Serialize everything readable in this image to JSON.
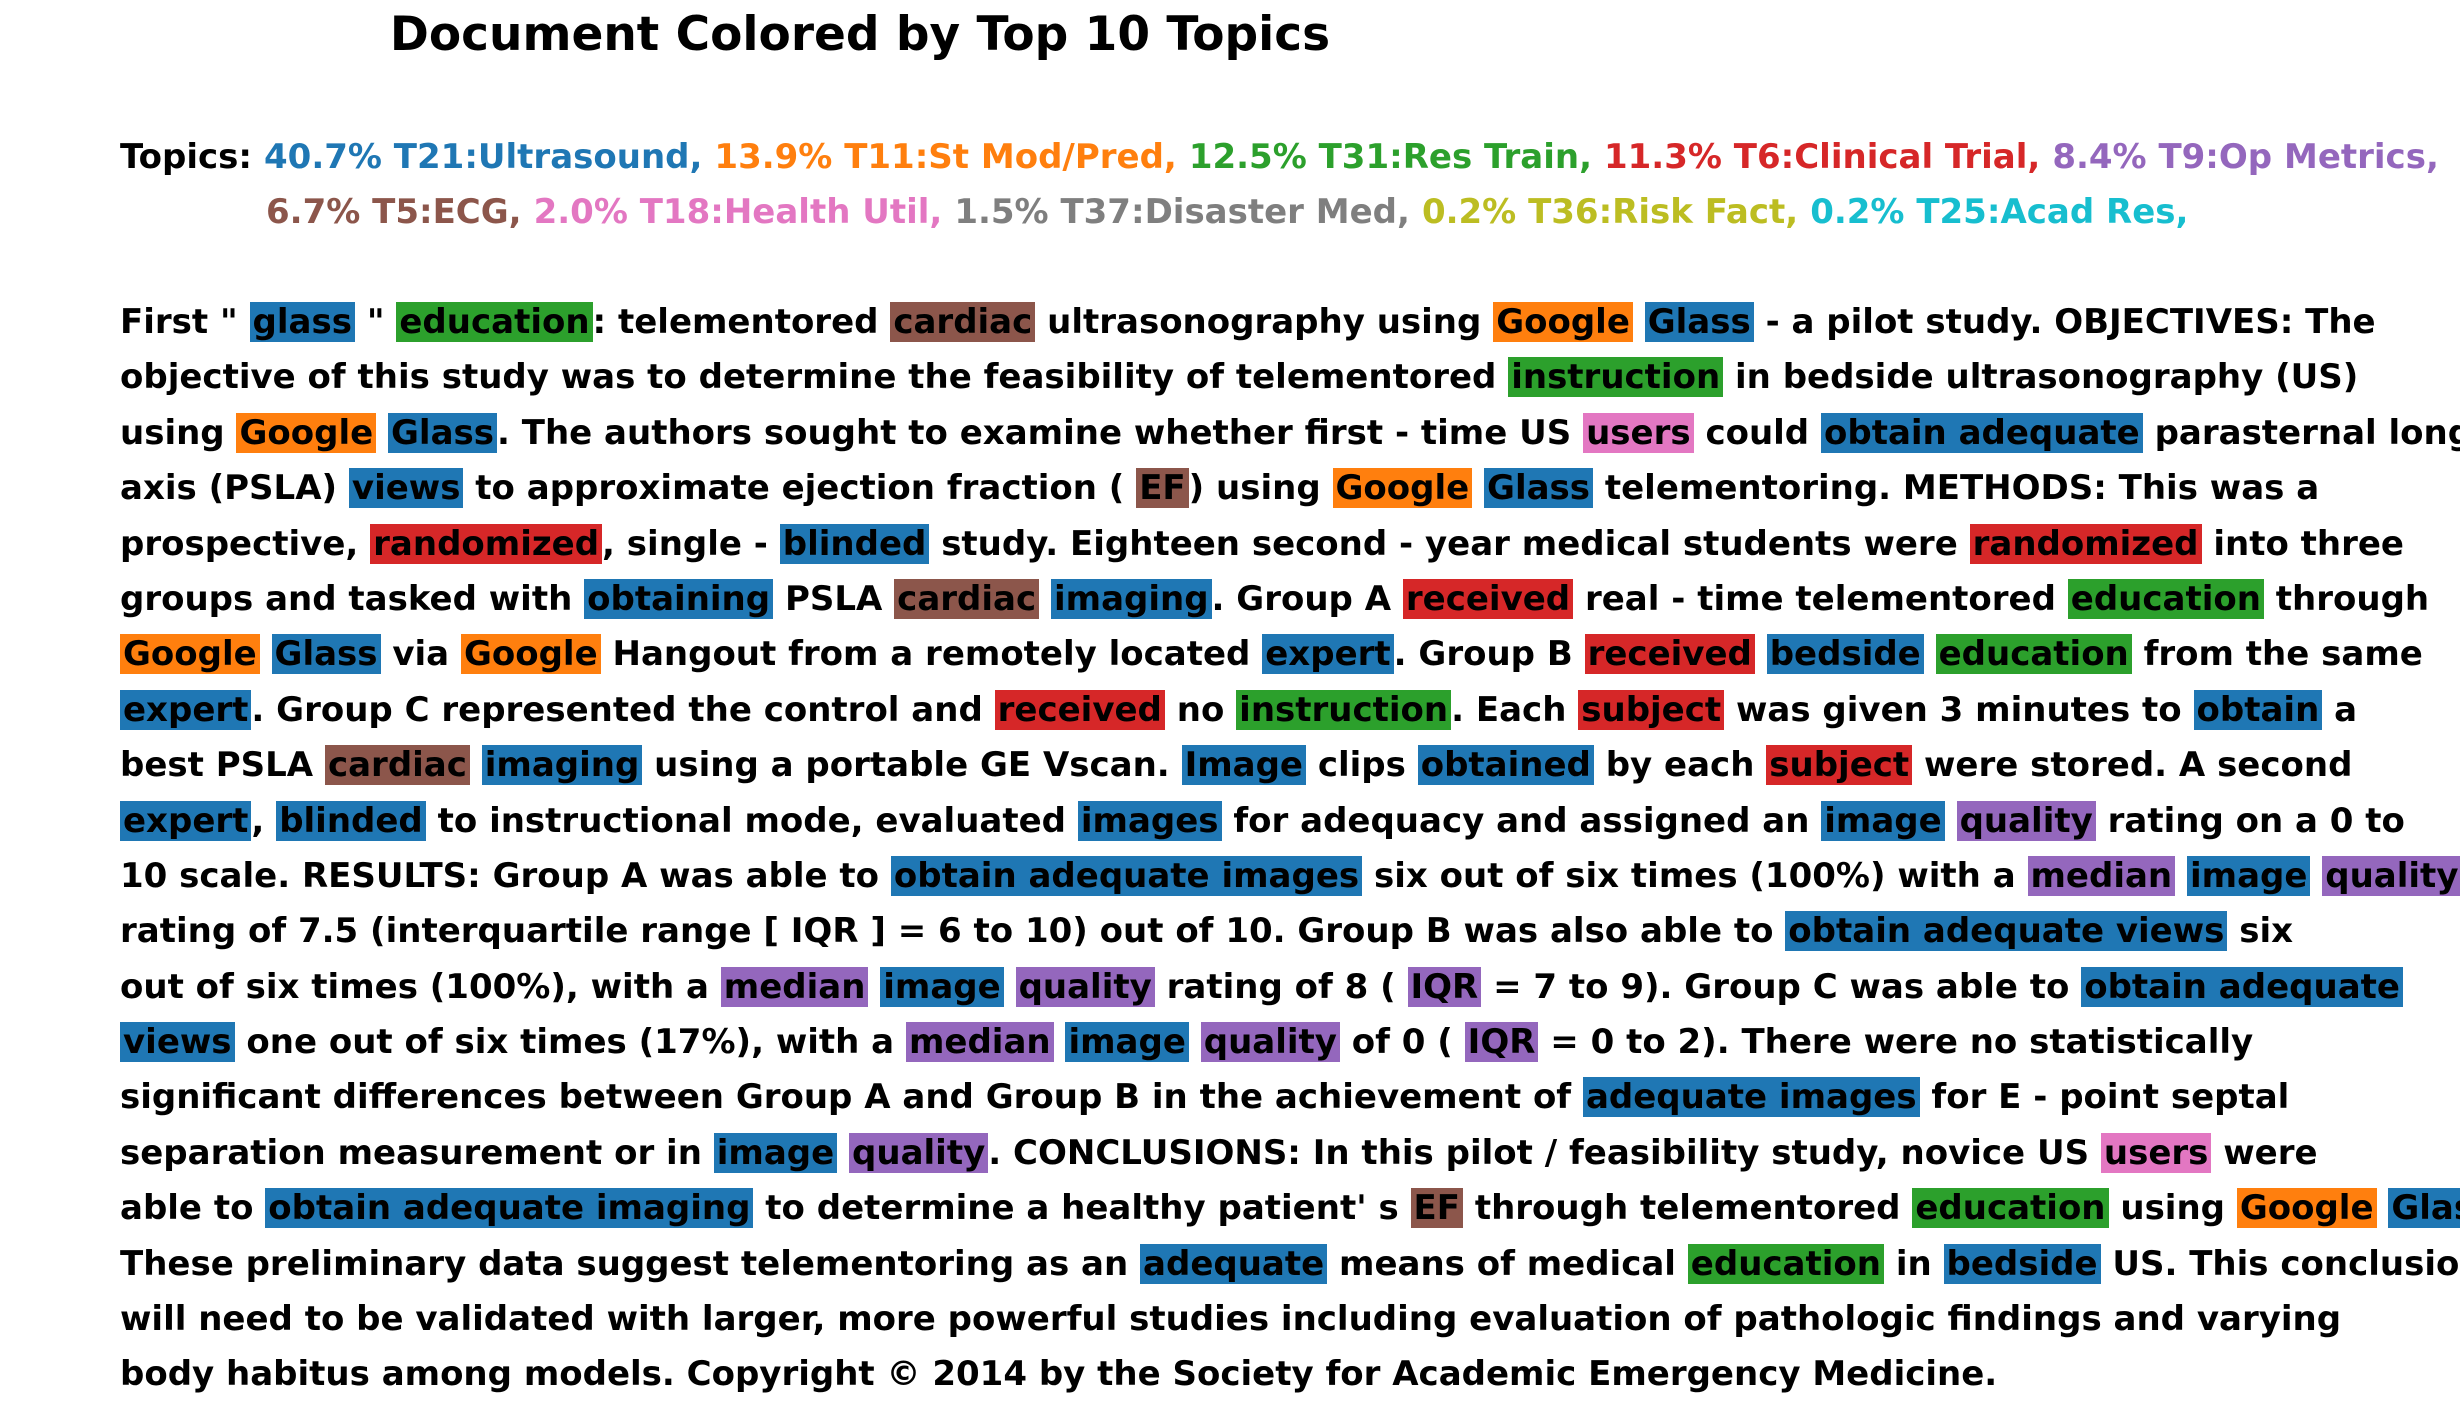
{
  "title": "Document Colored by Top 10 Topics",
  "legend": {
    "label": "Topics:",
    "row1": [
      {
        "text": "40.7% T21:Ultrasound,",
        "color": "#1f77b4"
      },
      {
        "text": "13.9% T11:St Mod/Pred,",
        "color": "#ff7f0e"
      },
      {
        "text": "12.5% T31:Res Train,",
        "color": "#2ca02c"
      },
      {
        "text": "11.3% T6:Clinical Trial,",
        "color": "#d62728"
      },
      {
        "text": "8.4% T9:Op Metrics,",
        "color": "#9467bd"
      }
    ],
    "row2": [
      {
        "text": "6.7% T5:ECG,",
        "color": "#8c564b"
      },
      {
        "text": "2.0% T18:Health Util,",
        "color": "#e377c2"
      },
      {
        "text": "1.5% T37:Disaster Med,",
        "color": "#7f7f7f"
      },
      {
        "text": "0.2% T36:Risk Fact,",
        "color": "#bcbd22"
      },
      {
        "text": "0.2% T25:Acad Res,",
        "color": "#17becf"
      }
    ]
  },
  "topic_colors": {
    "T21": "#1f77b4",
    "T11": "#ff7f0e",
    "T31": "#2ca02c",
    "T6": "#d62728",
    "T9": "#9467bd",
    "T5": "#8c564b",
    "T18": "#e377c2",
    "T37": "#7f7f7f",
    "T36": "#bcbd22",
    "T25": "#17becf"
  },
  "lines": [
    [
      [
        "First \"",
        null
      ],
      [
        "glass",
        "T21"
      ],
      [
        "\"",
        null
      ],
      [
        "education",
        "T31"
      ],
      [
        ": telementored",
        null
      ],
      [
        "cardiac",
        "T5"
      ],
      [
        "ultrasonography using",
        null
      ],
      [
        "Google",
        "T11"
      ],
      [
        "Glass",
        "T21"
      ],
      [
        "- a pilot study. OBJECTIVES: The",
        null
      ]
    ],
    [
      [
        "objective of this study was to determine the feasibility of telementored",
        null
      ],
      [
        "instruction",
        "T31"
      ],
      [
        "in bedside ultrasonography (US)",
        null
      ]
    ],
    [
      [
        "using",
        null
      ],
      [
        "Google",
        "T11"
      ],
      [
        "Glass",
        "T21"
      ],
      [
        ". The authors sought to examine whether first - time US",
        null
      ],
      [
        "users",
        "T18"
      ],
      [
        "could",
        null
      ],
      [
        "obtain adequate",
        "T21"
      ],
      [
        "parasternal long",
        null
      ]
    ],
    [
      [
        "axis (PSLA)",
        null
      ],
      [
        "views",
        "T21"
      ],
      [
        "to approximate ejection fraction (",
        null
      ],
      [
        "EF",
        "T5"
      ],
      [
        ") using",
        null
      ],
      [
        "Google",
        "T11"
      ],
      [
        "Glass",
        "T21"
      ],
      [
        "telementoring. METHODS: This was a",
        null
      ]
    ],
    [
      [
        "prospective,",
        null
      ],
      [
        "randomized",
        "T6"
      ],
      [
        ", single -",
        null
      ],
      [
        "blinded",
        "T21"
      ],
      [
        "study. Eighteen second - year medical students were",
        null
      ],
      [
        "randomized",
        "T6"
      ],
      [
        "into three",
        null
      ]
    ],
    [
      [
        "groups and tasked with",
        null
      ],
      [
        "obtaining",
        "T21"
      ],
      [
        "PSLA",
        null
      ],
      [
        "cardiac",
        "T5"
      ],
      [
        "imaging",
        "T21"
      ],
      [
        ". Group A",
        null
      ],
      [
        "received",
        "T6"
      ],
      [
        "real - time telementored",
        null
      ],
      [
        "education",
        "T31"
      ],
      [
        "through",
        null
      ]
    ],
    [
      [
        "Google",
        "T11"
      ],
      [
        "Glass",
        "T21"
      ],
      [
        "via",
        null
      ],
      [
        "Google",
        "T11"
      ],
      [
        "Hangout from a remotely located",
        null
      ],
      [
        "expert",
        "T21"
      ],
      [
        ". Group B",
        null
      ],
      [
        "received",
        "T6"
      ],
      [
        "bedside",
        "T21"
      ],
      [
        "education",
        "T31"
      ],
      [
        "from the same",
        null
      ]
    ],
    [
      [
        "expert",
        "T21"
      ],
      [
        ". Group C represented the control and",
        null
      ],
      [
        "received",
        "T6"
      ],
      [
        "no",
        null
      ],
      [
        "instruction",
        "T31"
      ],
      [
        ". Each",
        null
      ],
      [
        "subject",
        "T6"
      ],
      [
        "was given 3 minutes to",
        null
      ],
      [
        "obtain",
        "T21"
      ],
      [
        "a",
        null
      ]
    ],
    [
      [
        "best PSLA",
        null
      ],
      [
        "cardiac",
        "T5"
      ],
      [
        "imaging",
        "T21"
      ],
      [
        "using a portable GE Vscan.",
        null
      ],
      [
        "Image",
        "T21"
      ],
      [
        "clips",
        null
      ],
      [
        "obtained",
        "T21"
      ],
      [
        "by each",
        null
      ],
      [
        "subject",
        "T6"
      ],
      [
        "were stored. A second",
        null
      ]
    ],
    [
      [
        "expert",
        "T21"
      ],
      [
        ",",
        null
      ],
      [
        "blinded",
        "T21"
      ],
      [
        "to instructional mode, evaluated",
        null
      ],
      [
        "images",
        "T21"
      ],
      [
        "for adequacy and assigned an",
        null
      ],
      [
        "image",
        "T21"
      ],
      [
        "quality",
        "T9"
      ],
      [
        "rating on a 0 to",
        null
      ]
    ],
    [
      [
        "10 scale. RESULTS: Group A was able to",
        null
      ],
      [
        "obtain adequate images",
        "T21"
      ],
      [
        "six out of six times (100%) with a",
        null
      ],
      [
        "median",
        "T9"
      ],
      [
        "image",
        "T21"
      ],
      [
        "quality",
        "T9"
      ]
    ],
    [
      [
        "rating of 7.5 (interquartile range [ IQR ] = 6 to 10) out of 10. Group B was also able to",
        null
      ],
      [
        "obtain adequate views",
        "T21"
      ],
      [
        "six",
        null
      ]
    ],
    [
      [
        "out of six times (100%), with a",
        null
      ],
      [
        "median",
        "T9"
      ],
      [
        "image",
        "T21"
      ],
      [
        "quality",
        "T9"
      ],
      [
        "rating of 8 (",
        null
      ],
      [
        "IQR",
        "T9"
      ],
      [
        "= 7 to 9). Group C was able to",
        null
      ],
      [
        "obtain adequate",
        "T21"
      ]
    ],
    [
      [
        "views",
        "T21"
      ],
      [
        "one out of six times (17%), with a",
        null
      ],
      [
        "median",
        "T9"
      ],
      [
        "image",
        "T21"
      ],
      [
        "quality",
        "T9"
      ],
      [
        "of 0 (",
        null
      ],
      [
        "IQR",
        "T9"
      ],
      [
        "= 0 to 2). There were no statistically",
        null
      ]
    ],
    [
      [
        "significant differences between Group A and Group B in the achievement of",
        null
      ],
      [
        "adequate images",
        "T21"
      ],
      [
        "for E - point septal",
        null
      ]
    ],
    [
      [
        "separation measurement or in",
        null
      ],
      [
        "image",
        "T21"
      ],
      [
        "quality",
        "T9"
      ],
      [
        ". CONCLUSIONS: In this pilot / feasibility study, novice US",
        null
      ],
      [
        "users",
        "T18"
      ],
      [
        "were",
        null
      ]
    ],
    [
      [
        "able to",
        null
      ],
      [
        "obtain adequate imaging",
        "T21"
      ],
      [
        "to determine a healthy patient' s",
        null
      ],
      [
        "EF",
        "T5"
      ],
      [
        "through telementored",
        null
      ],
      [
        "education",
        "T31"
      ],
      [
        "using",
        null
      ],
      [
        "Google",
        "T11"
      ],
      [
        "Glass",
        "T21"
      ],
      [
        ".",
        null
      ]
    ],
    [
      [
        "These preliminary data suggest telementoring as an",
        null
      ],
      [
        "adequate",
        "T21"
      ],
      [
        "means of medical",
        null
      ],
      [
        "education",
        "T31"
      ],
      [
        "in",
        null
      ],
      [
        "bedside",
        "T21"
      ],
      [
        "US. This conclusion",
        null
      ]
    ],
    [
      [
        "will need to be validated with larger, more powerful studies including evaluation of pathologic findings and varying",
        null
      ]
    ],
    [
      [
        "body habitus among models. Copyright © 2014 by the Society for Academic Emergency Medicine.",
        null
      ]
    ]
  ]
}
